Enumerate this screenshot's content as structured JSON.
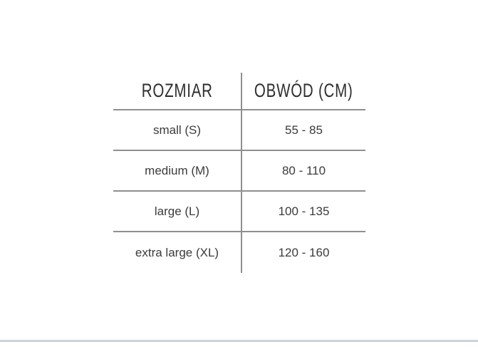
{
  "table": {
    "columns": [
      {
        "label": "ROZMIAR"
      },
      {
        "label": "OBWÓD (CM)"
      }
    ],
    "rows": [
      {
        "size": "small (S)",
        "circumference": "55 - 85"
      },
      {
        "size": "medium (M)",
        "circumference": "80 - 110"
      },
      {
        "size": "large (L)",
        "circumference": "100 - 135"
      },
      {
        "size": "extra large (XL)",
        "circumference": "120 - 160"
      }
    ]
  },
  "colors": {
    "table_line": "#8f8f8f",
    "header_text": "#2e2e2e",
    "body_text": "#3b3b3b",
    "page_bottom_line": "#ccd4dc",
    "background": "#ffffff"
  }
}
